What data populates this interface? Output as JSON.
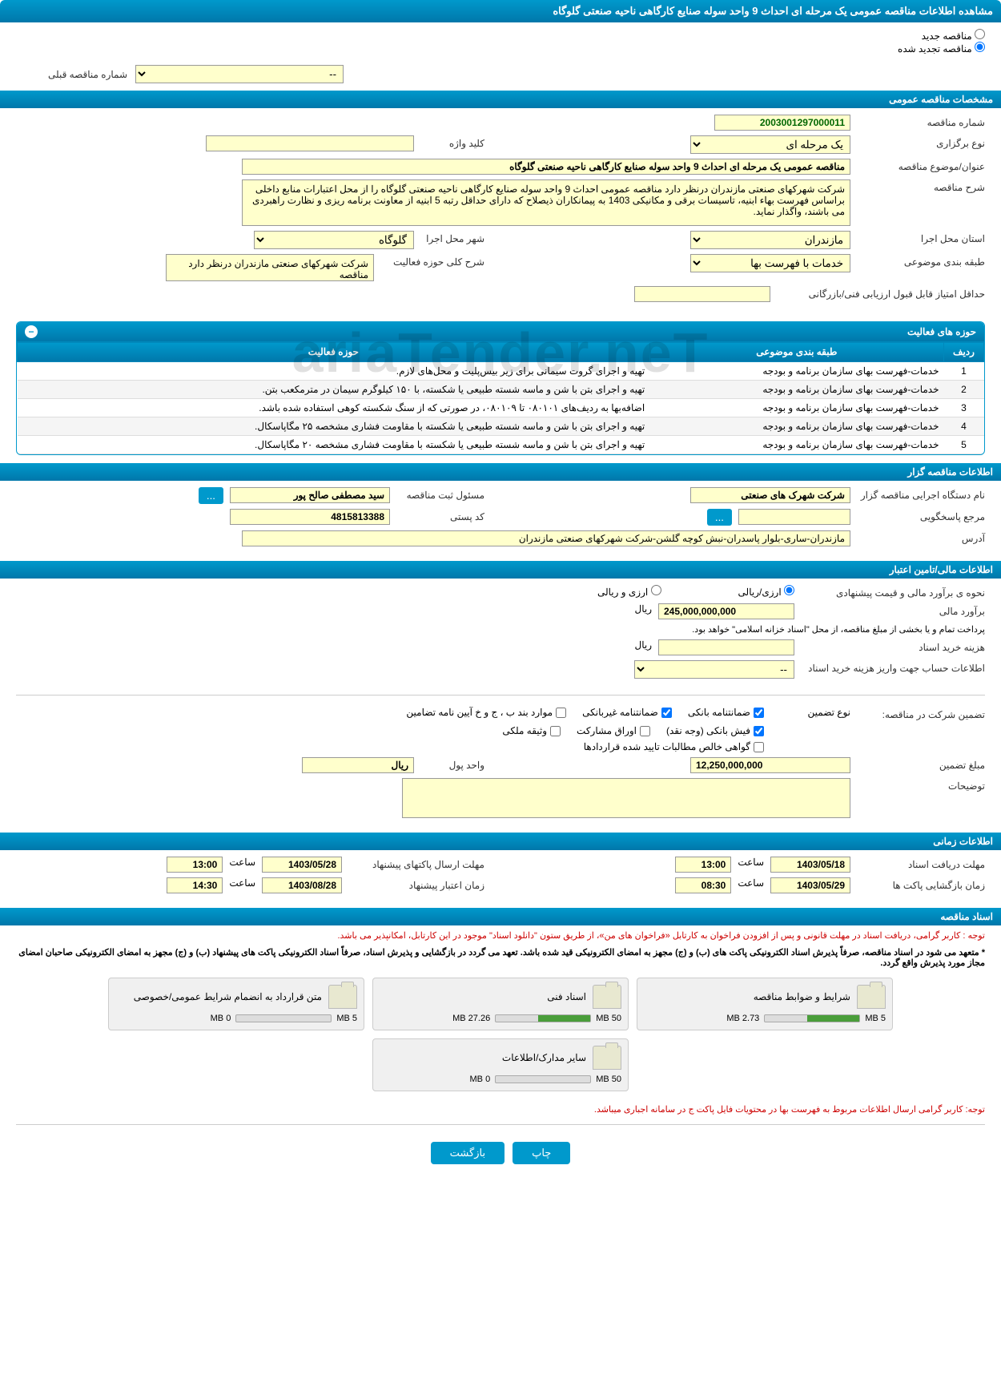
{
  "page_title": "مشاهده اطلاعات مناقصه عمومی یک مرحله ای احداث 9 واحد سوله صنایع کارگاهی ناحیه صنعتی گلوگاه",
  "radio": {
    "new": "مناقصه جدید",
    "renewed": "مناقصه تجدید شده"
  },
  "prev_number": {
    "label": "شماره مناقصه قبلی",
    "value": "--"
  },
  "sections": {
    "general": "مشخصات مناقصه عمومی",
    "organizer": "اطلاعات مناقصه گزار",
    "financial": "اطلاعات مالی/تامین اعتبار",
    "timing": "اطلاعات زمانی",
    "documents": "اسناد مناقصه"
  },
  "general": {
    "tender_no_label": "شماره مناقصه",
    "tender_no": "2003001297000011",
    "type_label": "نوع برگزاری",
    "type": "یک مرحله ای",
    "subject_label": "عنوان/موضوع مناقصه",
    "subject": "مناقصه عمومی یک مرحله ای احداث 9 واحد سوله صنایع کارگاهی ناحیه صنعتی گلوگاه",
    "desc_label": "شرح مناقصه",
    "desc": "شرکت شهرکهای صنعتی مازندران درنظر دارد مناقصه عمومی احداث 9 واحد سوله صنایع کارگاهی ناحیه صنعتی گلوگاه را از محل اعتبارات منابع داخلی براساس فهرست بهاء ابنیه، تاسیسات برقی و مکانیکی 1403 به پیمانکاران ذیصلاح که دارای حداقل رتبه 5 ابنیه از معاونت برنامه ریزی و نظارت راهبردی می باشند، واگذار نماید.",
    "province_label": "استان محل اجرا",
    "province": "مازندران",
    "city_label": "شهر محل اجرا",
    "city": "گلوگاه",
    "category_label": "طبقه بندی موضوعی",
    "category": "خدمات با فهرست بها",
    "scope_label": "شرح کلی حوزه فعالیت",
    "scope": "شرکت شهرکهای صنعتی مازندران درنظر دارد مناقصه",
    "keyword_label": "کلید واژه",
    "min_score_label": "حداقل امتیاز قابل قبول ارزیابی فنی/بازرگانی"
  },
  "activities": {
    "title": "حوزه های فعالیت",
    "cols": {
      "row": "ردیف",
      "category": "طبقه بندی موضوعی",
      "scope": "حوزه فعالیت"
    },
    "rows": [
      {
        "n": "1",
        "cat": "خدمات-فهرست بهای سازمان برنامه و بودجه",
        "scope": "تهیه و اجرای گروت سیمانی برای زیر بیس‌پلیت و محل‌های لازم."
      },
      {
        "n": "2",
        "cat": "خدمات-فهرست بهای سازمان برنامه و بودجه",
        "scope": "تهیه و اجرای بتن با شن و ماسه شسته طبیعی یا شکسته، با ۱۵۰ کیلوگرم سیمان در مترمکعب بتن."
      },
      {
        "n": "3",
        "cat": "خدمات-فهرست بهای سازمان برنامه و بودجه",
        "scope": "اضافه‌بها به ردیف‌های ۰۸۰۱۰۱ تا ۰۸۰۱۰۹، در صورتی که از سنگ شکسته کوهی استفاده شده باشد."
      },
      {
        "n": "4",
        "cat": "خدمات-فهرست بهای سازمان برنامه و بودجه",
        "scope": "تهیه و اجرای بتن با شن و ماسه شسته طبیعی یا شکسته با مقاومت فشاری مشخصه ۲۵ مگاپاسکال."
      },
      {
        "n": "5",
        "cat": "خدمات-فهرست بهای سازمان برنامه و بودجه",
        "scope": "تهیه و اجرای بتن با شن و ماسه شسته طبیعی یا شکسته با مقاومت فشاری مشخصه ۲۰ مگاپاسکال."
      }
    ]
  },
  "organizer": {
    "org_label": "نام دستگاه اجرایی مناقصه گزار",
    "org": "شرکت شهرک های صنعتی",
    "responsible_label": "مسئول ثبت مناقصه",
    "responsible": "سید مصطفی صالح پور",
    "response_label": "مرجع پاسخگویی",
    "postal_label": "کد پستی",
    "postal": "4815813388",
    "address_label": "آدرس",
    "address": "مازندران-ساری-بلوار پاسدران-نبش کوچه گلشن-شرکت شهرکهای صنعتی مازندران"
  },
  "financial": {
    "method_label": "نحوه ی برآورد مالی و قیمت پیشنهادی",
    "opt_rial": "ارزی/ریالی",
    "opt_both": "ارزی و ریالی",
    "estimate_label": "برآورد مالی",
    "estimate": "245,000,000,000",
    "rial": "ریال",
    "payment_note": "پرداخت تمام و یا بخشی از مبلغ مناقصه، از محل \"اسناد خزانه اسلامی\" خواهد بود.",
    "doc_cost_label": "هزینه خرید اسناد",
    "account_label": "اطلاعات حساب جهت واریز هزینه خرید اسناد",
    "account_value": "--"
  },
  "guarantee": {
    "label": "تضمین شرکت در مناقصه:",
    "type_label": "نوع تضمین",
    "opts": {
      "bank_guar": "ضمانتنامه بانکی",
      "nonbank_guar": "ضمانتنامه غیربانکی",
      "regs": "موارد بند ب ، ج و خ آیین نامه تضامین",
      "cash": "فیش بانکی (وجه نقد)",
      "securities": "اوراق مشارکت",
      "property": "وثیقه ملکی",
      "contracts": "گواهی خالص مطالبات تایید شده قراردادها"
    },
    "amount_label": "مبلغ تضمین",
    "amount": "12,250,000,000",
    "unit_label": "واحد پول",
    "unit": "ریال",
    "notes_label": "توضیحات"
  },
  "timing": {
    "receive_label": "مهلت دریافت اسناد",
    "receive_date": "1403/05/18",
    "receive_time": "13:00",
    "send_label": "مهلت ارسال پاکتهای پیشنهاد",
    "send_date": "1403/05/28",
    "send_time": "13:00",
    "open_label": "زمان بازگشایی پاکت ها",
    "open_date": "1403/05/29",
    "open_time": "08:30",
    "valid_label": "زمان اعتبار پیشنهاد",
    "valid_date": "1403/08/28",
    "valid_time": "14:30",
    "time_word": "ساعت"
  },
  "docs": {
    "note1": "توجه : کاربر گرامی، دریافت اسناد در مهلت قانونی و پس از افزودن فراخوان به کارتابل «فراخوان های من»، از طریق ستون \"دانلود اسناد\" موجود در این کارتابل، امکانپذیر می باشد.",
    "note2": "* متعهد می شود در اسناد مناقصه، صرفاً پذیرش اسناد الکترونیکی پاکت های (ب) و (ج) مجهز به امضای الکترونیکی قید شده باشد. تعهد می گردد در بازگشایی و پذیرش اسناد، صرفاً اسناد الکترونیکی پاکت های پیشنهاد (ب) و (ج) مجهز به امضای الکترونیکی صاحبان امضای مجاز مورد پذیرش واقع گردد.",
    "note3": "توجه: کاربر گرامی ارسال اطلاعات مربوط به فهرست بها در محتویات فایل پاکت ج در سامانه اجباری میباشد.",
    "items": [
      {
        "title": "شرایط و ضوابط مناقصه",
        "used": "2.73 MB",
        "total": "5 MB",
        "pct": 55
      },
      {
        "title": "اسناد فنی",
        "used": "27.26 MB",
        "total": "50 MB",
        "pct": 55
      },
      {
        "title": "متن قرارداد به انضمام شرایط عمومی/خصوصی",
        "used": "0 MB",
        "total": "5 MB",
        "pct": 0
      },
      {
        "title": "سایر مدارک/اطلاعات",
        "used": "0 MB",
        "total": "50 MB",
        "pct": 0
      }
    ]
  },
  "buttons": {
    "print": "چاپ",
    "back": "بازگشت",
    "more": "..."
  },
  "watermark": "ariaTender.neT"
}
